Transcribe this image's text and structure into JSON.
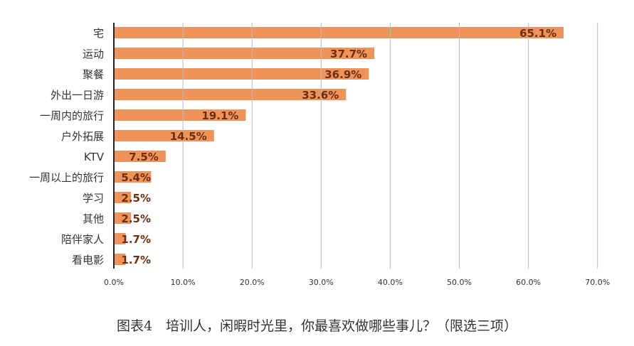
{
  "caption": "图表4　培训人，闲暇时光里，你最喜欢做哪些事儿？（限选三项）",
  "colors": {
    "bar": "#f0935a",
    "value_label": "#6b2f12",
    "gridline": "#b9b9b9",
    "gridline_major": "#222222",
    "text": "#333333"
  },
  "chart_data": {
    "type": "bar",
    "orientation": "horizontal",
    "categories": [
      "宅",
      "运动",
      "聚餐",
      "外出一日游",
      "一周内的旅行",
      "户外拓展",
      "KTV",
      "一周以上的旅行",
      "学习",
      "其他",
      "陪伴家人",
      "看电影"
    ],
    "values": [
      65.1,
      37.7,
      36.9,
      33.6,
      19.1,
      14.5,
      7.5,
      5.4,
      2.5,
      2.5,
      1.7,
      1.7
    ],
    "value_labels": [
      "65.1%",
      "37.7%",
      "36.9%",
      "33.6%",
      "19.1%",
      "14.5%",
      "7.5%",
      "5.4%",
      "2.5%",
      "2.5%",
      "1.7%",
      "1.7%"
    ],
    "x_ticks": [
      0,
      10,
      20,
      30,
      40,
      50,
      60,
      70
    ],
    "x_tick_labels": [
      "0.0%",
      "10.0%",
      "20.0%",
      "30.0%",
      "40.0%",
      "50.0%",
      "60.0%",
      "70.0%"
    ],
    "xlim": [
      0,
      70
    ],
    "grid": true,
    "legend": "none",
    "title": "",
    "xlabel": "",
    "ylabel": ""
  }
}
